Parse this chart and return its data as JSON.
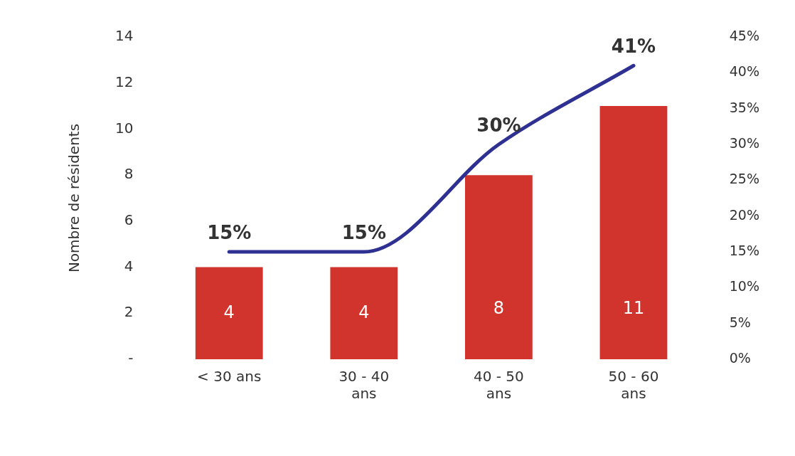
{
  "chart_data": {
    "type": "bar",
    "ylabel": "Nombre de résidents",
    "categories": [
      "< 30 ans",
      "30 - 40 ans",
      "40 - 50 ans",
      "50 - 60 ans"
    ],
    "series": [
      {
        "color": "#d0342c",
        "values": [
          4,
          4,
          8,
          11
        ],
        "value_labels": [
          "4",
          "4",
          "8",
          "11"
        ]
      },
      {
        "type": "line",
        "axis": "y2",
        "color": "#2e3192",
        "values": [
          15,
          15,
          30,
          41
        ],
        "value_labels": [
          "15%",
          "15%",
          "30%",
          "41%"
        ]
      }
    ],
    "ylim": [
      0,
      14
    ],
    "yticks": [
      {
        "value": 0,
        "label": "-"
      },
      2,
      4,
      6,
      8,
      10,
      12,
      14
    ],
    "y2lim": [
      0,
      45
    ],
    "y2ticks": [
      {
        "value": 0,
        "label": "0%"
      },
      {
        "value": 5,
        "label": "5%"
      },
      {
        "value": 10,
        "label": "10%"
      },
      {
        "value": 15,
        "label": "15%"
      },
      {
        "value": 20,
        "label": "20%"
      },
      {
        "value": 25,
        "label": "25%"
      },
      {
        "value": 30,
        "label": "30%"
      },
      {
        "value": 35,
        "label": "35%"
      },
      {
        "value": 40,
        "label": "40%"
      },
      {
        "value": 45,
        "label": "45%"
      }
    ],
    "grid": false,
    "legend": false,
    "marker": "none"
  }
}
